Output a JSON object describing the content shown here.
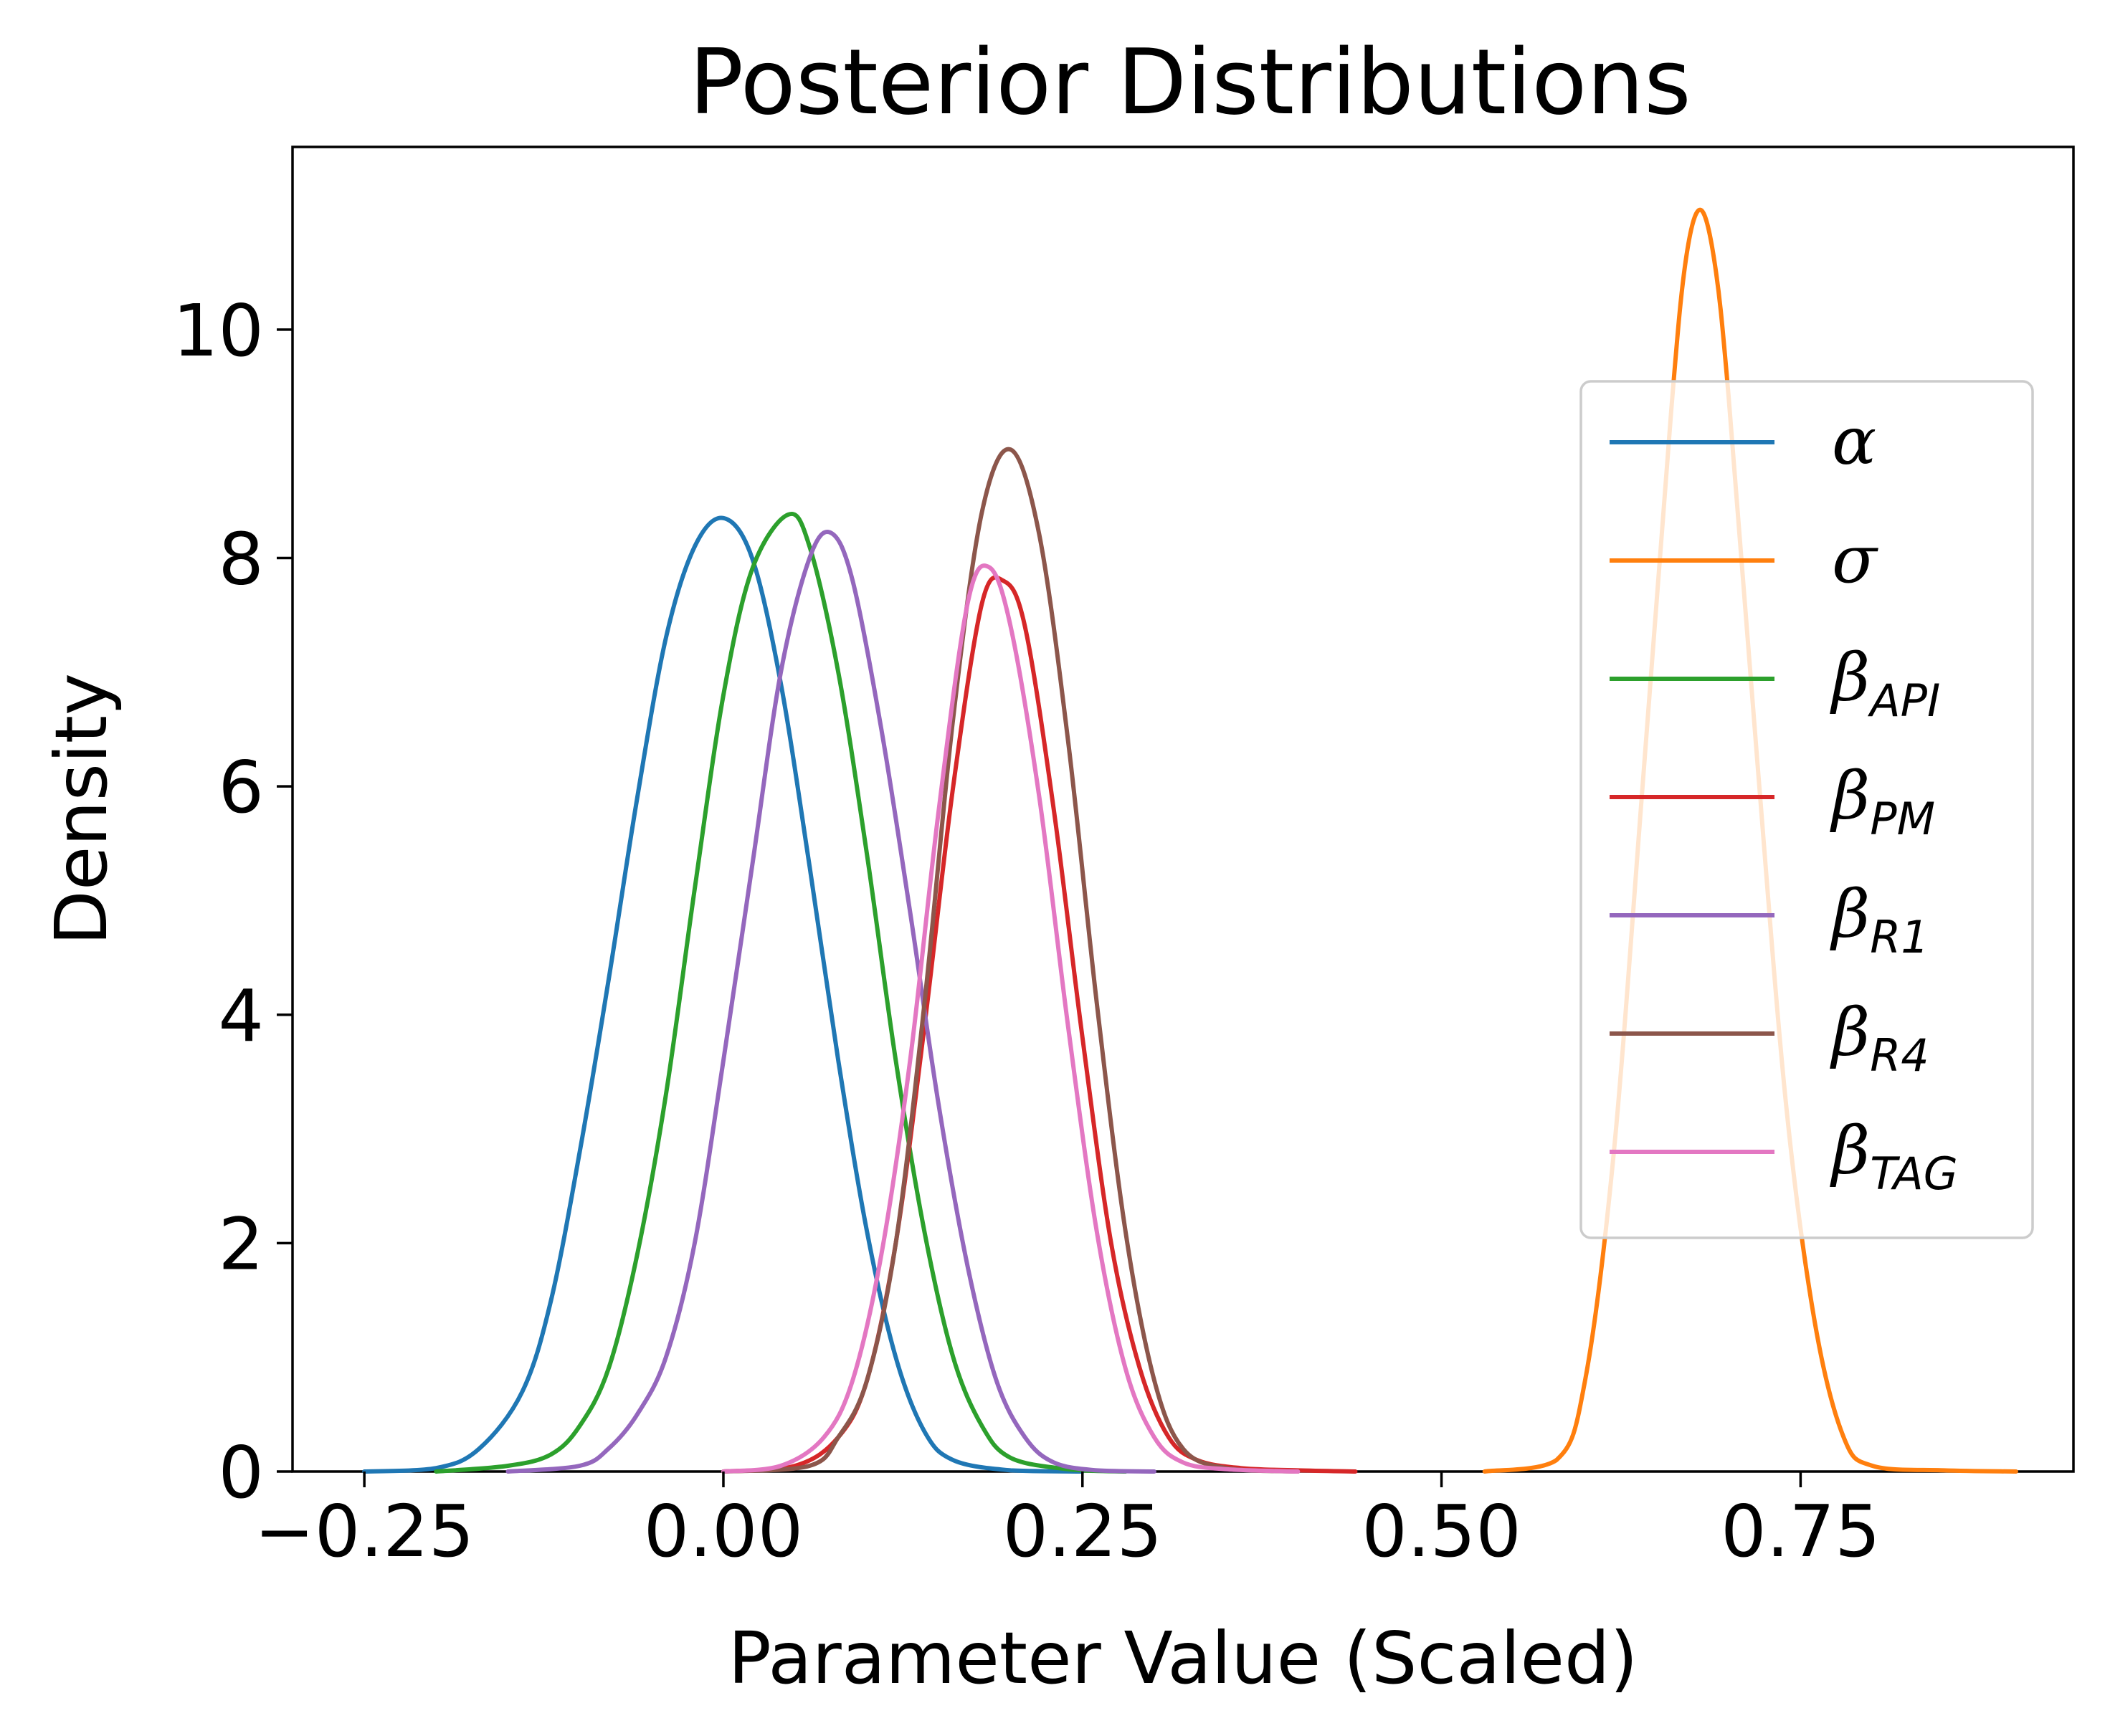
{
  "chart_data": {
    "type": "line",
    "title": "Posterior Distributions",
    "xlabel": "Parameter Value (Scaled)",
    "ylabel": "Density",
    "xlim": [
      -0.3,
      0.94
    ],
    "ylim": [
      0,
      11.6
    ],
    "xticks": [
      -0.25,
      0.0,
      0.25,
      0.5,
      0.75
    ],
    "xtick_labels": [
      "−0.25",
      "0.00",
      "0.25",
      "0.50",
      "0.75"
    ],
    "yticks": [
      0,
      2,
      4,
      6,
      8,
      10
    ],
    "ytick_labels": [
      "0",
      "2",
      "4",
      "6",
      "8",
      "10"
    ],
    "grid": false,
    "legend_position": "right",
    "series": [
      {
        "name": "α",
        "subscript": "",
        "color": "#1f77b4",
        "x": [
          -0.25,
          -0.2,
          -0.17,
          -0.14,
          -0.12,
          -0.1,
          -0.08,
          -0.06,
          -0.04,
          -0.02,
          0.0,
          0.02,
          0.04,
          0.06,
          0.08,
          0.1,
          0.12,
          0.14,
          0.16,
          0.2,
          0.25
        ],
        "y": [
          0,
          0.03,
          0.2,
          0.7,
          1.5,
          2.8,
          4.3,
          5.9,
          7.3,
          8.1,
          8.35,
          8.0,
          6.9,
          5.3,
          3.6,
          2.1,
          1.0,
          0.35,
          0.1,
          0.01,
          0
        ]
      },
      {
        "name": "σ",
        "subscript": "",
        "color": "#ff7f0e",
        "x": [
          0.53,
          0.58,
          0.6,
          0.62,
          0.64,
          0.66,
          0.67,
          0.68,
          0.69,
          0.7,
          0.72,
          0.74,
          0.76,
          0.78,
          0.8,
          0.85,
          0.9
        ],
        "y": [
          0,
          0.1,
          0.8,
          2.8,
          6.0,
          9.3,
          10.6,
          11.05,
          10.6,
          9.4,
          6.2,
          3.2,
          1.3,
          0.3,
          0.05,
          0.01,
          0
        ]
      },
      {
        "name": "β",
        "subscript": "API",
        "color": "#2ca02c",
        "x": [
          -0.2,
          -0.15,
          -0.12,
          -0.1,
          -0.08,
          -0.06,
          -0.04,
          -0.02,
          0.0,
          0.02,
          0.045,
          0.06,
          0.08,
          0.1,
          0.12,
          0.14,
          0.16,
          0.18,
          0.2,
          0.24,
          0.28
        ],
        "y": [
          0,
          0.05,
          0.15,
          0.4,
          0.9,
          1.9,
          3.3,
          5.1,
          6.8,
          7.9,
          8.38,
          8.1,
          7.0,
          5.4,
          3.6,
          2.1,
          1.0,
          0.4,
          0.12,
          0.02,
          0
        ]
      },
      {
        "name": "β",
        "subscript": "PM",
        "color": "#d62728",
        "x": [
          0.0,
          0.05,
          0.08,
          0.1,
          0.12,
          0.14,
          0.16,
          0.18,
          0.195,
          0.21,
          0.23,
          0.25,
          0.27,
          0.29,
          0.31,
          0.33,
          0.36,
          0.4,
          0.44
        ],
        "y": [
          0,
          0.05,
          0.3,
          0.8,
          2.0,
          3.9,
          6.0,
          7.6,
          7.8,
          7.4,
          5.8,
          3.8,
          2.0,
          0.9,
          0.3,
          0.1,
          0.03,
          0.01,
          0
        ]
      },
      {
        "name": "β",
        "subscript": "R1",
        "color": "#9467bd",
        "x": [
          -0.15,
          -0.1,
          -0.08,
          -0.06,
          -0.04,
          -0.02,
          0.0,
          0.02,
          0.04,
          0.06,
          0.075,
          0.09,
          0.11,
          0.13,
          0.15,
          0.17,
          0.19,
          0.21,
          0.23,
          0.26,
          0.3
        ],
        "y": [
          0,
          0.05,
          0.2,
          0.5,
          1.0,
          2.0,
          3.6,
          5.3,
          7.0,
          8.0,
          8.22,
          7.8,
          6.5,
          4.9,
          3.2,
          1.8,
          0.8,
          0.3,
          0.08,
          0.01,
          0
        ]
      },
      {
        "name": "β",
        "subscript": "R4",
        "color": "#8c564b",
        "x": [
          0.0,
          0.06,
          0.08,
          0.1,
          0.12,
          0.14,
          0.16,
          0.18,
          0.2,
          0.22,
          0.24,
          0.26,
          0.28,
          0.3,
          0.32,
          0.35,
          0.4
        ],
        "y": [
          0,
          0.05,
          0.3,
          0.8,
          2.0,
          4.1,
          6.6,
          8.4,
          8.95,
          8.2,
          6.4,
          4.1,
          2.1,
          0.8,
          0.2,
          0.03,
          0
        ]
      },
      {
        "name": "β",
        "subscript": "TAG",
        "color": "#e377c2",
        "x": [
          0.0,
          0.04,
          0.07,
          0.09,
          0.11,
          0.13,
          0.15,
          0.17,
          0.185,
          0.2,
          0.22,
          0.24,
          0.26,
          0.28,
          0.3,
          0.32,
          0.35,
          0.4
        ],
        "y": [
          0,
          0.05,
          0.3,
          0.8,
          1.9,
          3.6,
          5.8,
          7.6,
          7.92,
          7.4,
          5.9,
          3.9,
          2.1,
          0.9,
          0.3,
          0.08,
          0.02,
          0
        ]
      }
    ]
  }
}
